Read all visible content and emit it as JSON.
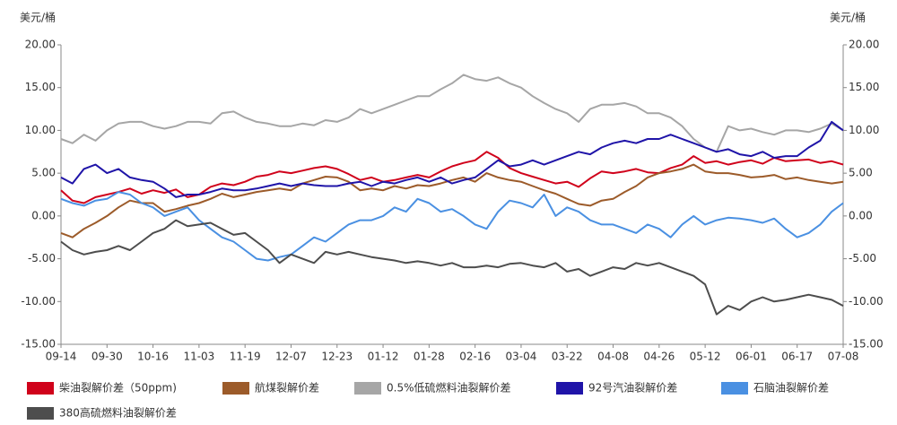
{
  "chart_data": {
    "type": "line",
    "y_label": "美元/桶",
    "y2_label": "美元/桶",
    "categories": [
      "09-14",
      null,
      null,
      null,
      "09-30",
      null,
      null,
      null,
      "10-16",
      null,
      null,
      null,
      "11-03",
      null,
      null,
      null,
      "11-19",
      null,
      null,
      null,
      "12-07",
      null,
      null,
      null,
      "12-23",
      null,
      null,
      null,
      "01-12",
      null,
      null,
      null,
      "01-28",
      null,
      null,
      null,
      "02-16",
      null,
      null,
      null,
      "03-04",
      null,
      null,
      null,
      "03-22",
      null,
      null,
      null,
      "04-08",
      null,
      null,
      null,
      "04-26",
      null,
      null,
      null,
      "05-12",
      null,
      null,
      null,
      "06-01",
      null,
      null,
      null,
      "06-17",
      null,
      null,
      null,
      "07-08"
    ],
    "ylim": [
      -15,
      20
    ],
    "yticks": [
      {
        "value": -15,
        "label": "-15.00"
      },
      {
        "value": -10,
        "label": "-10.00"
      },
      {
        "value": -5,
        "label": "-5.00"
      },
      {
        "value": 0,
        "label": "0.00"
      },
      {
        "value": 5,
        "label": "5.00"
      },
      {
        "value": 10,
        "label": "10.00"
      },
      {
        "value": 15,
        "label": "15.00"
      },
      {
        "value": 20,
        "label": "20.00"
      }
    ],
    "y2lim": [
      -15,
      20
    ],
    "y2ticks": [
      {
        "value": -15,
        "label": "-15.00"
      },
      {
        "value": -10,
        "label": "-10.00"
      },
      {
        "value": -5,
        "label": "-5.00"
      },
      {
        "value": 0,
        "label": "0.00"
      },
      {
        "value": 5,
        "label": "5.00"
      },
      {
        "value": 10,
        "label": "10.00"
      },
      {
        "value": 15,
        "label": "15.00"
      },
      {
        "value": 20,
        "label": "20.00"
      }
    ],
    "grid": false,
    "series": [
      {
        "name": "柴油裂解价差（50ppm)",
        "color": "#d0021b",
        "values": [
          3,
          1.8,
          1.5,
          2.2,
          2.5,
          2.8,
          3.2,
          2.6,
          3,
          2.7,
          3.1,
          2.2,
          2.5,
          3.4,
          3.8,
          3.6,
          4,
          4.6,
          4.8,
          5.2,
          5,
          5.3,
          5.6,
          5.8,
          5.5,
          4.9,
          4.2,
          4.5,
          4,
          4.2,
          4.5,
          4.8,
          4.5,
          5.2,
          5.8,
          6.2,
          6.5,
          7.5,
          6.8,
          5.6,
          5,
          4.6,
          4.2,
          3.8,
          4,
          3.4,
          4.4,
          5.2,
          5,
          5.2,
          5.5,
          5.1,
          5,
          5.6,
          6,
          7,
          6.2,
          6.4,
          6,
          6.3,
          6.5,
          6.1,
          6.8,
          6.4,
          6.5,
          6.6,
          6.2,
          6.4,
          6
        ]
      },
      {
        "name": "航煤裂解价差",
        "color": "#9c5b2a",
        "values": [
          -2,
          -2.5,
          -1.5,
          -0.8,
          0,
          1,
          1.8,
          1.5,
          1.5,
          0.5,
          0.8,
          1.2,
          1.5,
          2,
          2.6,
          2.2,
          2.5,
          2.8,
          3,
          3.2,
          3,
          3.8,
          4.2,
          4.6,
          4.5,
          4,
          3,
          3.2,
          3,
          3.5,
          3.2,
          3.6,
          3.5,
          3.8,
          4.2,
          4.5,
          4,
          5,
          4.5,
          4.2,
          4,
          3.5,
          3,
          2.6,
          2,
          1.4,
          1.2,
          1.8,
          2,
          2.8,
          3.5,
          4.5,
          5,
          5.2,
          5.5,
          6,
          5.2,
          5,
          5,
          4.8,
          4.5,
          4.6,
          4.8,
          4.3,
          4.5,
          4.2,
          4,
          3.8,
          4
        ]
      },
      {
        "name": "0.5%低硫燃料油裂解价差",
        "color": "#a6a6a6",
        "values": [
          9,
          8.5,
          9.5,
          8.8,
          10,
          10.8,
          11,
          11,
          10.5,
          10.2,
          10.5,
          11,
          11,
          10.8,
          12,
          12.2,
          11.5,
          11,
          10.8,
          10.5,
          10.5,
          10.8,
          10.6,
          11.2,
          11,
          11.5,
          12.5,
          12,
          12.5,
          13,
          13.5,
          14,
          14,
          14.8,
          15.5,
          16.5,
          16,
          15.8,
          16.2,
          15.5,
          15,
          14,
          13.2,
          12.5,
          12,
          11,
          12.5,
          13,
          13,
          13.2,
          12.8,
          12,
          12,
          11.5,
          10.5,
          9,
          8,
          7.5,
          10.5,
          10,
          10.2,
          9.8,
          9.5,
          10,
          10,
          9.8,
          10.2,
          10.8,
          10
        ]
      },
      {
        "name": "92号汽油裂解价差",
        "color": "#1f14a8",
        "values": [
          4.5,
          3.8,
          5.5,
          6,
          5,
          5.5,
          4.5,
          4.2,
          4,
          3.2,
          2.2,
          2.5,
          2.5,
          2.8,
          3.2,
          3,
          3,
          3.2,
          3.5,
          3.8,
          3.5,
          3.8,
          3.6,
          3.5,
          3.5,
          3.8,
          4,
          3.5,
          4,
          3.8,
          4.2,
          4.5,
          4,
          4.5,
          3.8,
          4.2,
          4.5,
          5.5,
          6.5,
          5.8,
          6,
          6.5,
          6,
          6.5,
          7,
          7.5,
          7.2,
          8,
          8.5,
          8.8,
          8.5,
          9,
          9,
          9.5,
          9,
          8.5,
          8,
          7.5,
          7.8,
          7.2,
          7,
          7.5,
          6.8,
          7,
          7,
          8,
          8.8,
          11,
          10
        ]
      },
      {
        "name": "石脑油裂解价差",
        "color": "#4a90e2",
        "values": [
          2,
          1.5,
          1.2,
          1.8,
          2,
          2.8,
          2.5,
          1.5,
          1,
          0,
          0.5,
          1,
          -0.5,
          -1.5,
          -2.5,
          -3,
          -4,
          -5,
          -5.2,
          -4.8,
          -4.5,
          -3.5,
          -2.5,
          -3,
          -2,
          -1,
          -0.5,
          -0.5,
          0,
          1,
          0.5,
          2,
          1.5,
          0.5,
          0.8,
          0,
          -1,
          -1.5,
          0.5,
          1.8,
          1.5,
          1,
          2.5,
          0,
          1,
          0.5,
          -0.5,
          -1,
          -1,
          -1.5,
          -2,
          -1,
          -1.5,
          -2.5,
          -1,
          0,
          -1,
          -0.5,
          -0.2,
          -0.3,
          -0.5,
          -0.8,
          -0.3,
          -1.5,
          -2.5,
          -2,
          -1,
          0.5,
          1.5
        ]
      },
      {
        "name": "380高硫燃料油裂解价差",
        "color": "#4d4d4d",
        "values": [
          -3,
          -4,
          -4.5,
          -4.2,
          -4,
          -3.5,
          -4,
          -3,
          -2,
          -1.5,
          -0.5,
          -1.2,
          -1,
          -0.8,
          -1.5,
          -2.2,
          -2,
          -3,
          -4,
          -5.5,
          -4.5,
          -5,
          -5.5,
          -4.2,
          -4.5,
          -4.2,
          -4.5,
          -4.8,
          -5,
          -5.2,
          -5.5,
          -5.3,
          -5.5,
          -5.8,
          -5.5,
          -6,
          -6,
          -5.8,
          -6,
          -5.6,
          -5.5,
          -5.8,
          -6,
          -5.5,
          -6.5,
          -6.2,
          -7,
          -6.5,
          -6,
          -6.2,
          -5.5,
          -5.8,
          -5.5,
          -6,
          -6.5,
          -7,
          -8,
          -11.5,
          -10.5,
          -11,
          -10,
          -9.5,
          -10,
          -9.8,
          -9.5,
          -9.2,
          -9.5,
          -9.8,
          -10.5
        ]
      }
    ]
  }
}
